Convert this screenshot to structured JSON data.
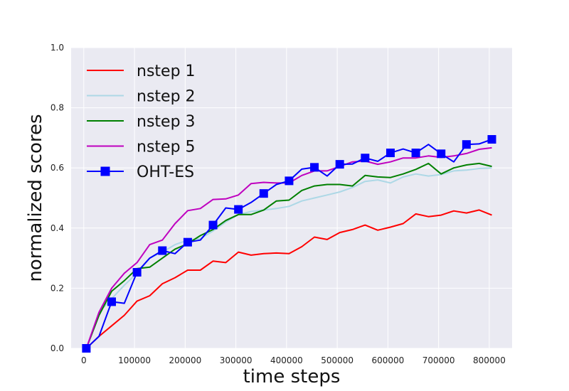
{
  "chart_data": {
    "type": "line",
    "xlabel": "time steps",
    "ylabel": "normalized scores",
    "xlim": [
      -25000,
      845000
    ],
    "ylim": [
      0,
      1
    ],
    "x_ticks": [
      0,
      100000,
      200000,
      300000,
      400000,
      500000,
      600000,
      700000,
      800000
    ],
    "x_tick_labels": [
      "0",
      "100000",
      "200000",
      "300000",
      "400000",
      "500000",
      "600000",
      "700000",
      "800000"
    ],
    "y_ticks": [
      0,
      0.2,
      0.4,
      0.6,
      0.8,
      1.0
    ],
    "y_tick_labels": [
      "0.0",
      "0.2",
      "0.4",
      "0.6",
      "0.8",
      "1.0"
    ],
    "grid": true,
    "background": "#eaeaf2",
    "legend_position": "top-left",
    "x": [
      5000,
      30000,
      55000,
      80000,
      105000,
      130000,
      155000,
      180000,
      205000,
      230000,
      255000,
      280000,
      305000,
      330000,
      355000,
      380000,
      405000,
      430000,
      455000,
      480000,
      505000,
      530000,
      555000,
      580000,
      605000,
      630000,
      655000,
      680000,
      705000,
      730000,
      755000,
      780000,
      805000
    ],
    "series": [
      {
        "name": "nstep 1",
        "color": "#ff0000",
        "marker": "none",
        "values": [
          0.0,
          0.04,
          0.075,
          0.11,
          0.157,
          0.175,
          0.215,
          0.235,
          0.26,
          0.26,
          0.29,
          0.285,
          0.32,
          0.31,
          0.315,
          0.317,
          0.315,
          0.338,
          0.37,
          0.362,
          0.385,
          0.395,
          0.41,
          0.393,
          0.403,
          0.415,
          0.447,
          0.438,
          0.443,
          0.457,
          0.45,
          0.46,
          0.443
        ]
      },
      {
        "name": "nstep 2",
        "color": "#add8e6",
        "marker": "none",
        "values": [
          0.0,
          0.12,
          0.165,
          0.21,
          0.25,
          0.3,
          0.32,
          0.345,
          0.36,
          0.365,
          0.39,
          0.42,
          0.445,
          0.455,
          0.46,
          0.465,
          0.472,
          0.49,
          0.5,
          0.51,
          0.52,
          0.535,
          0.555,
          0.56,
          0.55,
          0.57,
          0.58,
          0.573,
          0.578,
          0.59,
          0.593,
          0.598,
          0.6
        ]
      },
      {
        "name": "nstep 3",
        "color": "#008000",
        "marker": "none",
        "values": [
          0.0,
          0.11,
          0.19,
          0.225,
          0.265,
          0.27,
          0.3,
          0.33,
          0.348,
          0.375,
          0.395,
          0.425,
          0.445,
          0.445,
          0.46,
          0.49,
          0.493,
          0.525,
          0.54,
          0.545,
          0.545,
          0.54,
          0.575,
          0.57,
          0.568,
          0.58,
          0.595,
          0.615,
          0.58,
          0.6,
          0.61,
          0.615,
          0.605
        ]
      },
      {
        "name": "nstep 5",
        "color": "#bf00bf",
        "marker": "none",
        "values": [
          0.0,
          0.12,
          0.2,
          0.25,
          0.285,
          0.345,
          0.36,
          0.415,
          0.458,
          0.465,
          0.495,
          0.497,
          0.51,
          0.548,
          0.552,
          0.55,
          0.55,
          0.575,
          0.59,
          0.59,
          0.605,
          0.62,
          0.623,
          0.612,
          0.62,
          0.633,
          0.633,
          0.64,
          0.635,
          0.64,
          0.648,
          0.662,
          0.667
        ]
      },
      {
        "name": "OHT-ES",
        "color": "#0000ff",
        "marker": "square",
        "values": [
          0.0,
          0.04,
          0.155,
          0.15,
          0.253,
          0.3,
          0.325,
          0.315,
          0.353,
          0.36,
          0.41,
          0.467,
          0.462,
          0.485,
          0.515,
          0.545,
          0.557,
          0.596,
          0.602,
          0.573,
          0.612,
          0.613,
          0.633,
          0.622,
          0.65,
          0.663,
          0.65,
          0.678,
          0.647,
          0.62,
          0.678,
          0.68,
          0.695
        ]
      }
    ]
  }
}
